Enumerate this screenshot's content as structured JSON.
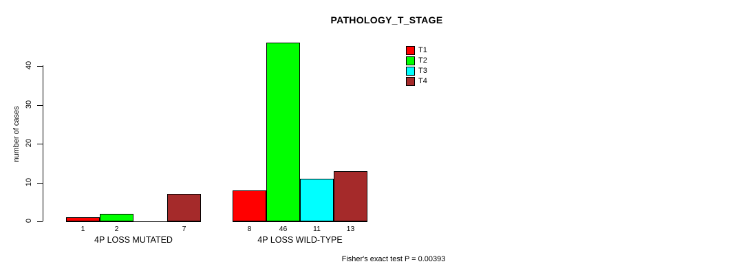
{
  "page": {
    "title": "PATHOLOGY_T_STAGE",
    "footer": "Fisher's exact test P = 0.00393"
  },
  "axis": {
    "ylabel": "number of cases"
  },
  "legend": {
    "items": [
      {
        "label": "T1",
        "color": "#FF0000"
      },
      {
        "label": "T2",
        "color": "#00FF00"
      },
      {
        "label": "T3",
        "color": "#00FFFF"
      },
      {
        "label": "T4",
        "color": "#A52A2A"
      }
    ]
  },
  "chart_data": {
    "type": "bar",
    "title": "PATHOLOGY_T_STAGE",
    "xlabel": "",
    "ylabel": "number of cases",
    "categories": [
      "4P LOSS MUTATED",
      "4P LOSS WILD-TYPE"
    ],
    "series": [
      {
        "name": "T1",
        "color": "#FF0000",
        "values": [
          1,
          8
        ]
      },
      {
        "name": "T2",
        "color": "#00FF00",
        "values": [
          2,
          46
        ]
      },
      {
        "name": "T3",
        "color": "#00FFFF",
        "values": [
          0,
          11
        ]
      },
      {
        "name": "T4",
        "color": "#A52A2A",
        "values": [
          7,
          13
        ]
      }
    ],
    "yticks": [
      0,
      10,
      20,
      30,
      40
    ],
    "ylim": [
      0,
      46
    ],
    "grid": false,
    "legend_position": "top-right",
    "bar_value_labels": true,
    "hide_zero_value_labels": true,
    "annotation": "Fisher's exact test P = 0.00393"
  }
}
